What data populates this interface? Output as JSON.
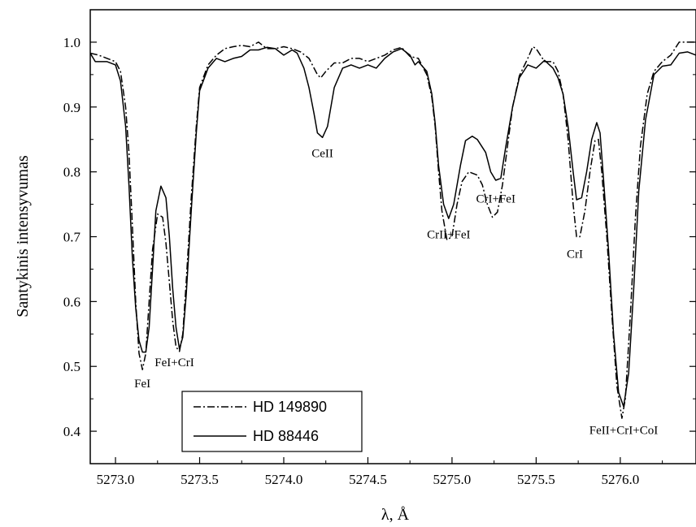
{
  "chart_data": {
    "type": "line",
    "xlabel": "λ, Å",
    "ylabel": "Santykinis intensyvumas",
    "xlim": [
      5272.85,
      5276.45
    ],
    "ylim": [
      0.35,
      1.05
    ],
    "xticks": [
      5273.0,
      5273.5,
      5274.0,
      5274.5,
      5275.0,
      5275.5,
      5276.0
    ],
    "xtick_labels": [
      "5273.0",
      "5273.5",
      "5274.0",
      "5274.5",
      "5275.0",
      "5275.5",
      "5276.0"
    ],
    "yticks": [
      0.4,
      0.5,
      0.6,
      0.7,
      0.8,
      0.9,
      1.0
    ],
    "ytick_labels": [
      "0.4",
      "0.5",
      "0.6",
      "0.7",
      "0.8",
      "0.9",
      "1.0"
    ],
    "grid": false,
    "legend_position": "bottom-left",
    "series": [
      {
        "name": "HD 149890",
        "style": "dash-dot",
        "color": "#000000",
        "points": [
          [
            5272.85,
            0.983
          ],
          [
            5272.9,
            0.98
          ],
          [
            5272.95,
            0.975
          ],
          [
            5273.0,
            0.97
          ],
          [
            5273.03,
            0.955
          ],
          [
            5273.06,
            0.9
          ],
          [
            5273.08,
            0.83
          ],
          [
            5273.1,
            0.72
          ],
          [
            5273.12,
            0.6
          ],
          [
            5273.14,
            0.52
          ],
          [
            5273.16,
            0.495
          ],
          [
            5273.18,
            0.52
          ],
          [
            5273.2,
            0.6
          ],
          [
            5273.22,
            0.68
          ],
          [
            5273.25,
            0.735
          ],
          [
            5273.28,
            0.73
          ],
          [
            5273.3,
            0.69
          ],
          [
            5273.32,
            0.63
          ],
          [
            5273.34,
            0.57
          ],
          [
            5273.36,
            0.53
          ],
          [
            5273.38,
            0.523
          ],
          [
            5273.4,
            0.55
          ],
          [
            5273.42,
            0.63
          ],
          [
            5273.45,
            0.76
          ],
          [
            5273.48,
            0.87
          ],
          [
            5273.5,
            0.93
          ],
          [
            5273.55,
            0.965
          ],
          [
            5273.6,
            0.98
          ],
          [
            5273.65,
            0.99
          ],
          [
            5273.7,
            0.993
          ],
          [
            5273.75,
            0.995
          ],
          [
            5273.8,
            0.993
          ],
          [
            5273.85,
            1.0
          ],
          [
            5273.9,
            0.99
          ],
          [
            5273.95,
            0.99
          ],
          [
            5274.0,
            0.993
          ],
          [
            5274.05,
            0.99
          ],
          [
            5274.1,
            0.985
          ],
          [
            5274.15,
            0.975
          ],
          [
            5274.2,
            0.95
          ],
          [
            5274.22,
            0.945
          ],
          [
            5274.25,
            0.955
          ],
          [
            5274.3,
            0.968
          ],
          [
            5274.35,
            0.968
          ],
          [
            5274.4,
            0.975
          ],
          [
            5274.45,
            0.975
          ],
          [
            5274.5,
            0.97
          ],
          [
            5274.55,
            0.975
          ],
          [
            5274.6,
            0.98
          ],
          [
            5274.65,
            0.988
          ],
          [
            5274.7,
            0.992
          ],
          [
            5274.75,
            0.978
          ],
          [
            5274.8,
            0.975
          ],
          [
            5274.85,
            0.95
          ],
          [
            5274.88,
            0.915
          ],
          [
            5274.9,
            0.87
          ],
          [
            5274.92,
            0.8
          ],
          [
            5274.94,
            0.74
          ],
          [
            5274.97,
            0.695
          ],
          [
            5275.0,
            0.7
          ],
          [
            5275.03,
            0.75
          ],
          [
            5275.06,
            0.785
          ],
          [
            5275.1,
            0.8
          ],
          [
            5275.15,
            0.795
          ],
          [
            5275.18,
            0.78
          ],
          [
            5275.21,
            0.75
          ],
          [
            5275.24,
            0.73
          ],
          [
            5275.27,
            0.738
          ],
          [
            5275.3,
            0.78
          ],
          [
            5275.33,
            0.84
          ],
          [
            5275.36,
            0.9
          ],
          [
            5275.4,
            0.948
          ],
          [
            5275.45,
            0.975
          ],
          [
            5275.48,
            0.993
          ],
          [
            5275.5,
            0.99
          ],
          [
            5275.55,
            0.97
          ],
          [
            5275.6,
            0.97
          ],
          [
            5275.63,
            0.955
          ],
          [
            5275.66,
            0.92
          ],
          [
            5275.69,
            0.85
          ],
          [
            5275.72,
            0.75
          ],
          [
            5275.74,
            0.7
          ],
          [
            5275.76,
            0.7
          ],
          [
            5275.79,
            0.74
          ],
          [
            5275.82,
            0.8
          ],
          [
            5275.85,
            0.848
          ],
          [
            5275.87,
            0.85
          ],
          [
            5275.89,
            0.8
          ],
          [
            5275.92,
            0.7
          ],
          [
            5275.95,
            0.58
          ],
          [
            5275.98,
            0.47
          ],
          [
            5276.01,
            0.42
          ],
          [
            5276.03,
            0.45
          ],
          [
            5276.06,
            0.58
          ],
          [
            5276.09,
            0.73
          ],
          [
            5276.12,
            0.84
          ],
          [
            5276.16,
            0.92
          ],
          [
            5276.2,
            0.955
          ],
          [
            5276.25,
            0.97
          ],
          [
            5276.3,
            0.98
          ],
          [
            5276.35,
            1.0
          ],
          [
            5276.4,
            1.0
          ],
          [
            5276.45,
            1.0
          ]
        ]
      },
      {
        "name": "HD 88446",
        "style": "solid",
        "color": "#000000",
        "points": [
          [
            5272.85,
            0.983
          ],
          [
            5272.88,
            0.97
          ],
          [
            5272.95,
            0.97
          ],
          [
            5273.0,
            0.965
          ],
          [
            5273.03,
            0.94
          ],
          [
            5273.06,
            0.87
          ],
          [
            5273.08,
            0.78
          ],
          [
            5273.1,
            0.67
          ],
          [
            5273.12,
            0.59
          ],
          [
            5273.14,
            0.54
          ],
          [
            5273.16,
            0.522
          ],
          [
            5273.18,
            0.522
          ],
          [
            5273.2,
            0.56
          ],
          [
            5273.22,
            0.65
          ],
          [
            5273.24,
            0.74
          ],
          [
            5273.27,
            0.778
          ],
          [
            5273.3,
            0.76
          ],
          [
            5273.32,
            0.7
          ],
          [
            5273.34,
            0.62
          ],
          [
            5273.36,
            0.56
          ],
          [
            5273.38,
            0.527
          ],
          [
            5273.4,
            0.545
          ],
          [
            5273.42,
            0.61
          ],
          [
            5273.45,
            0.74
          ],
          [
            5273.48,
            0.86
          ],
          [
            5273.5,
            0.925
          ],
          [
            5273.55,
            0.96
          ],
          [
            5273.6,
            0.975
          ],
          [
            5273.65,
            0.97
          ],
          [
            5273.7,
            0.975
          ],
          [
            5273.75,
            0.978
          ],
          [
            5273.8,
            0.988
          ],
          [
            5273.85,
            0.988
          ],
          [
            5273.9,
            0.992
          ],
          [
            5273.95,
            0.99
          ],
          [
            5274.0,
            0.98
          ],
          [
            5274.05,
            0.988
          ],
          [
            5274.08,
            0.983
          ],
          [
            5274.12,
            0.96
          ],
          [
            5274.15,
            0.93
          ],
          [
            5274.18,
            0.89
          ],
          [
            5274.2,
            0.86
          ],
          [
            5274.23,
            0.853
          ],
          [
            5274.26,
            0.87
          ],
          [
            5274.3,
            0.93
          ],
          [
            5274.35,
            0.96
          ],
          [
            5274.4,
            0.965
          ],
          [
            5274.45,
            0.96
          ],
          [
            5274.5,
            0.965
          ],
          [
            5274.55,
            0.96
          ],
          [
            5274.6,
            0.975
          ],
          [
            5274.65,
            0.985
          ],
          [
            5274.7,
            0.99
          ],
          [
            5274.75,
            0.98
          ],
          [
            5274.78,
            0.965
          ],
          [
            5274.8,
            0.97
          ],
          [
            5274.85,
            0.955
          ],
          [
            5274.88,
            0.92
          ],
          [
            5274.9,
            0.875
          ],
          [
            5274.92,
            0.81
          ],
          [
            5274.95,
            0.75
          ],
          [
            5274.98,
            0.728
          ],
          [
            5275.01,
            0.75
          ],
          [
            5275.05,
            0.81
          ],
          [
            5275.08,
            0.848
          ],
          [
            5275.12,
            0.855
          ],
          [
            5275.15,
            0.85
          ],
          [
            5275.2,
            0.83
          ],
          [
            5275.23,
            0.8
          ],
          [
            5275.26,
            0.787
          ],
          [
            5275.29,
            0.79
          ],
          [
            5275.32,
            0.84
          ],
          [
            5275.36,
            0.9
          ],
          [
            5275.4,
            0.945
          ],
          [
            5275.45,
            0.965
          ],
          [
            5275.5,
            0.96
          ],
          [
            5275.55,
            0.972
          ],
          [
            5275.6,
            0.96
          ],
          [
            5275.63,
            0.945
          ],
          [
            5275.66,
            0.92
          ],
          [
            5275.69,
            0.87
          ],
          [
            5275.72,
            0.8
          ],
          [
            5275.74,
            0.757
          ],
          [
            5275.77,
            0.76
          ],
          [
            5275.8,
            0.8
          ],
          [
            5275.83,
            0.85
          ],
          [
            5275.86,
            0.876
          ],
          [
            5275.88,
            0.86
          ],
          [
            5275.9,
            0.79
          ],
          [
            5275.93,
            0.68
          ],
          [
            5275.96,
            0.55
          ],
          [
            5275.99,
            0.46
          ],
          [
            5276.02,
            0.438
          ],
          [
            5276.05,
            0.49
          ],
          [
            5276.08,
            0.62
          ],
          [
            5276.11,
            0.77
          ],
          [
            5276.15,
            0.88
          ],
          [
            5276.2,
            0.95
          ],
          [
            5276.25,
            0.963
          ],
          [
            5276.3,
            0.965
          ],
          [
            5276.35,
            0.983
          ],
          [
            5276.4,
            0.985
          ],
          [
            5276.45,
            0.98
          ]
        ]
      }
    ],
    "annotations": [
      {
        "text": "FeI",
        "x": 5273.16,
        "y": 0.485
      },
      {
        "text": "FeI+CrI",
        "x": 5273.35,
        "y": 0.518
      },
      {
        "text": "CeII",
        "x": 5274.23,
        "y": 0.84
      },
      {
        "text": "CrII+FeI",
        "x": 5274.98,
        "y": 0.715
      },
      {
        "text": "CrI+FeI",
        "x": 5275.26,
        "y": 0.77
      },
      {
        "text": "CrI",
        "x": 5275.73,
        "y": 0.685
      },
      {
        "text": "FeII+CrI+CoI",
        "x": 5276.02,
        "y": 0.413
      }
    ]
  }
}
